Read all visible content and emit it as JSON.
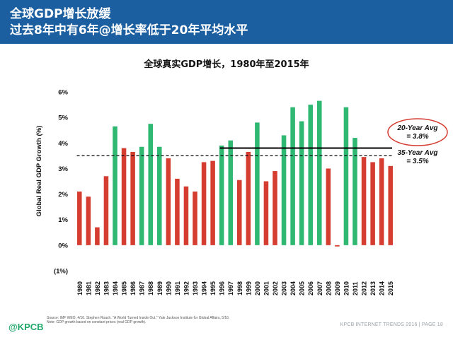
{
  "header": {
    "line1": "全球GDP增长放缓",
    "line2": "过去8年中有6年@增长率低于20年平均水平"
  },
  "chart_data": {
    "type": "bar",
    "title": "全球真实GDP增长，1980年至2015年",
    "ylabel": "Global Real GDP Growth (%)",
    "xlabel": "",
    "ylim": [
      -1,
      6
    ],
    "yticks": [
      "(1%)",
      "0%",
      "1%",
      "2%",
      "3%",
      "4%",
      "5%",
      "6%"
    ],
    "categories": [
      "1980",
      "1981",
      "1982",
      "1983",
      "1984",
      "1985",
      "1986",
      "1987",
      "1988",
      "1989",
      "1990",
      "1991",
      "1992",
      "1993",
      "1994",
      "1995",
      "1996",
      "1997",
      "1998",
      "1999",
      "2000",
      "2001",
      "2002",
      "2003",
      "2004",
      "2005",
      "2006",
      "2007",
      "2008",
      "2009",
      "2010",
      "2011",
      "2012",
      "2013",
      "2014",
      "2015"
    ],
    "values": [
      2.1,
      1.9,
      0.7,
      2.7,
      4.65,
      3.8,
      3.65,
      3.85,
      4.75,
      3.85,
      3.4,
      2.6,
      2.3,
      2.1,
      3.25,
      3.3,
      3.9,
      4.1,
      2.55,
      3.65,
      4.8,
      2.5,
      2.9,
      4.3,
      5.4,
      4.85,
      5.5,
      5.65,
      3.0,
      -0.05,
      5.4,
      4.2,
      3.45,
      3.25,
      3.4,
      3.1
    ],
    "bar_colors": {
      "above_avg": "#2eb872",
      "below_avg": "#d63d31"
    },
    "reference_lines": [
      {
        "label": "20-Year Avg\n= 3.8%",
        "value": 3.8,
        "style": "solid",
        "start": "1996",
        "end": "2015"
      },
      {
        "label": "35-Year Avg\n= 3.5%",
        "value": 3.5,
        "style": "dashed",
        "start": "1980",
        "end": "2015"
      }
    ],
    "annotation_highlight_color": "#d63d31",
    "grid": false,
    "legend": "none"
  },
  "footer": {
    "logo": "@KPCB",
    "source": "Source: IMF WEO, 4/16. Stephen Roach. \"A World Turned Inside Out,\" Yale Jackson Institute for Global Affairs, 5/16. Note: GDP growth based on constant prices (real GDP growth).",
    "right": "KPCB INTERNET TRENDS 2016  |  PAGE 18"
  }
}
